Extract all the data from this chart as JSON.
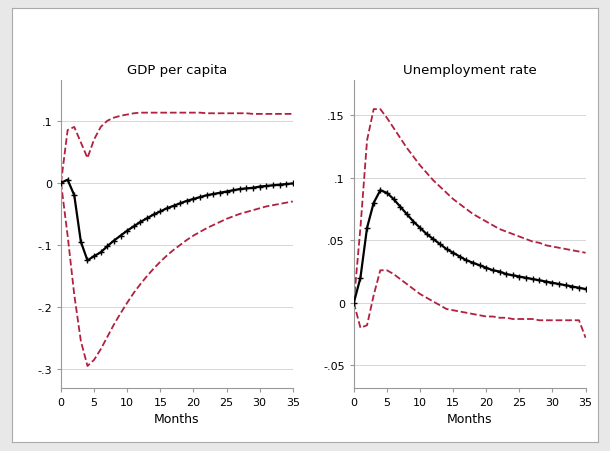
{
  "title_left": "GDP per capita",
  "title_right": "Unemployment rate",
  "xlabel": "Months",
  "months": [
    0,
    1,
    2,
    3,
    4,
    5,
    6,
    7,
    8,
    9,
    10,
    11,
    12,
    13,
    14,
    15,
    16,
    17,
    18,
    19,
    20,
    21,
    22,
    23,
    24,
    25,
    26,
    27,
    28,
    29,
    30,
    31,
    32,
    33,
    34,
    35
  ],
  "gdp_irf": [
    0.0,
    0.005,
    -0.02,
    -0.095,
    -0.125,
    -0.118,
    -0.112,
    -0.102,
    -0.093,
    -0.085,
    -0.077,
    -0.07,
    -0.063,
    -0.057,
    -0.051,
    -0.046,
    -0.041,
    -0.037,
    -0.033,
    -0.029,
    -0.026,
    -0.023,
    -0.02,
    -0.018,
    -0.016,
    -0.014,
    -0.012,
    -0.01,
    -0.009,
    -0.008,
    -0.006,
    -0.005,
    -0.004,
    -0.003,
    -0.002,
    -0.001
  ],
  "gdp_upper": [
    0.0,
    0.085,
    0.09,
    0.065,
    0.04,
    0.07,
    0.09,
    0.1,
    0.105,
    0.108,
    0.11,
    0.112,
    0.113,
    0.113,
    0.113,
    0.113,
    0.113,
    0.113,
    0.113,
    0.113,
    0.113,
    0.113,
    0.112,
    0.112,
    0.112,
    0.112,
    0.112,
    0.112,
    0.112,
    0.111,
    0.111,
    0.111,
    0.111,
    0.111,
    0.111,
    0.111
  ],
  "gdp_lower": [
    0.0,
    -0.085,
    -0.18,
    -0.255,
    -0.295,
    -0.285,
    -0.268,
    -0.248,
    -0.228,
    -0.21,
    -0.193,
    -0.177,
    -0.163,
    -0.15,
    -0.138,
    -0.127,
    -0.117,
    -0.108,
    -0.1,
    -0.092,
    -0.085,
    -0.079,
    -0.073,
    -0.068,
    -0.063,
    -0.058,
    -0.054,
    -0.05,
    -0.047,
    -0.044,
    -0.041,
    -0.038,
    -0.036,
    -0.034,
    -0.032,
    -0.03
  ],
  "unemp_irf": [
    0.0,
    0.02,
    0.06,
    0.08,
    0.09,
    0.088,
    0.083,
    0.077,
    0.071,
    0.065,
    0.06,
    0.055,
    0.051,
    0.047,
    0.043,
    0.04,
    0.037,
    0.034,
    0.032,
    0.03,
    0.028,
    0.026,
    0.025,
    0.023,
    0.022,
    0.021,
    0.02,
    0.019,
    0.018,
    0.017,
    0.016,
    0.015,
    0.014,
    0.013,
    0.012,
    0.011
  ],
  "unemp_upper": [
    0.0,
    0.06,
    0.13,
    0.155,
    0.155,
    0.148,
    0.14,
    0.132,
    0.124,
    0.117,
    0.11,
    0.104,
    0.098,
    0.093,
    0.088,
    0.083,
    0.079,
    0.075,
    0.071,
    0.068,
    0.065,
    0.062,
    0.059,
    0.057,
    0.055,
    0.053,
    0.051,
    0.049,
    0.048,
    0.046,
    0.045,
    0.044,
    0.043,
    0.042,
    0.041,
    0.04
  ],
  "unemp_lower": [
    0.0,
    -0.02,
    -0.018,
    0.006,
    0.026,
    0.026,
    0.023,
    0.019,
    0.015,
    0.011,
    0.007,
    0.004,
    0.001,
    -0.002,
    -0.005,
    -0.006,
    -0.007,
    -0.008,
    -0.009,
    -0.01,
    -0.011,
    -0.011,
    -0.012,
    -0.012,
    -0.013,
    -0.013,
    -0.013,
    -0.013,
    -0.014,
    -0.014,
    -0.014,
    -0.014,
    -0.014,
    -0.014,
    -0.014,
    -0.028
  ],
  "gdp_ylim": [
    -0.33,
    0.165
  ],
  "gdp_yticks": [
    -0.3,
    -0.2,
    -0.1,
    0.0,
    0.1
  ],
  "gdp_yticklabels": [
    "-.3",
    "-.2",
    "-.1",
    "0",
    ".1"
  ],
  "unemp_ylim": [
    -0.068,
    0.178
  ],
  "unemp_yticks": [
    -0.05,
    0.0,
    0.05,
    0.1,
    0.15
  ],
  "unemp_yticklabels": [
    "-.05",
    "0",
    ".05",
    ".1",
    ".15"
  ],
  "xlim": [
    0,
    35
  ],
  "xticks": [
    0,
    5,
    10,
    15,
    20,
    25,
    30,
    35
  ],
  "irf_color": "#000000",
  "ci_color": "#b22040",
  "irf_linewidth": 1.6,
  "ci_linewidth": 1.3,
  "marker": "+",
  "marker_size": 5,
  "marker_every": 1,
  "axes_bg": "#ffffff",
  "grid_color": "#d0d0d0",
  "fig_bg": "#e8e8e8",
  "outer_bg": "#dcdcdc"
}
